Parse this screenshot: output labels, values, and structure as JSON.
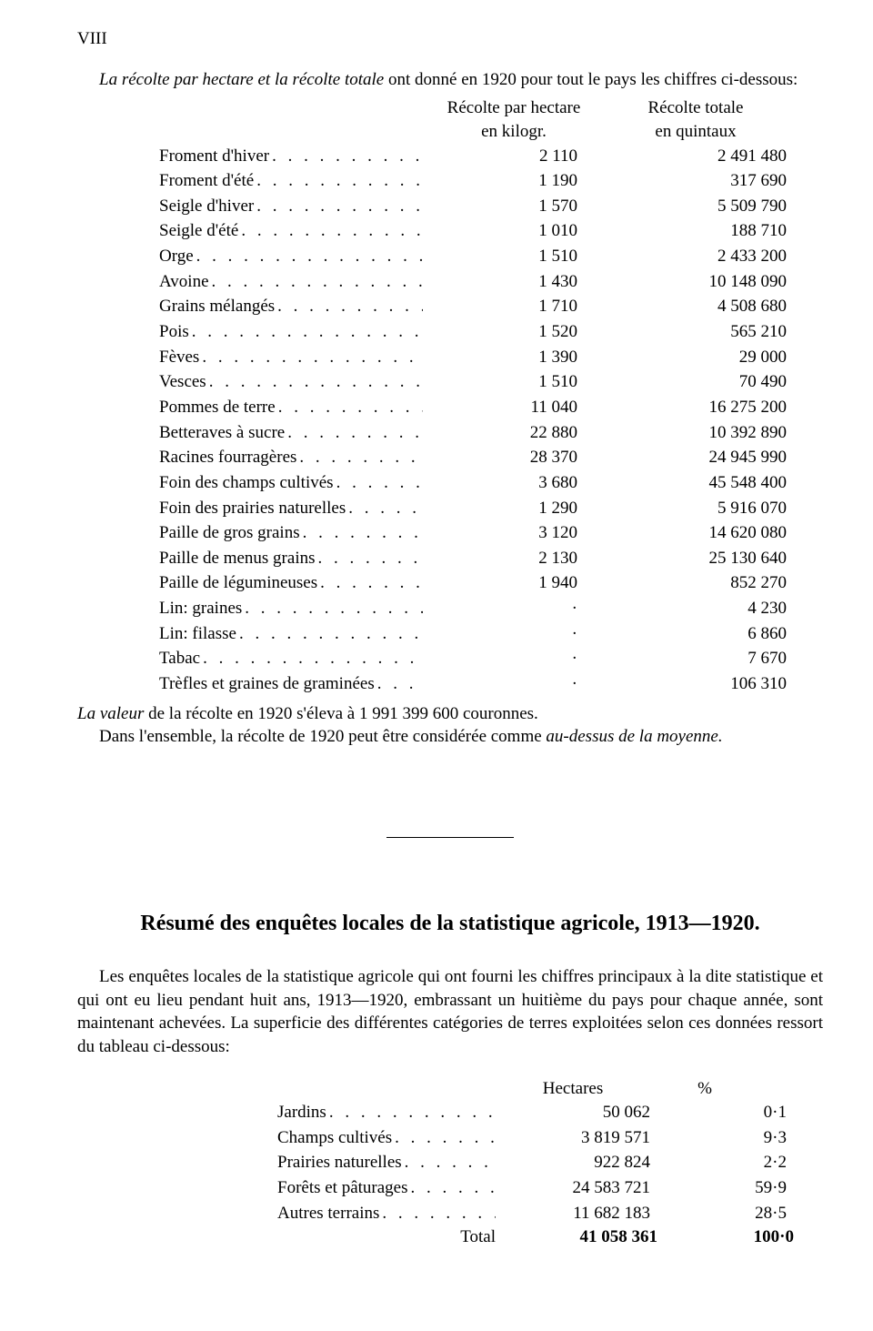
{
  "page_number": "VIII",
  "intro_sentence_prefix": "La récolte par hectare et la récolte totale",
  "intro_sentence_rest": " ont donné en 1920 pour tout le pays les chiffres ci-dessous:",
  "recolte_headers": {
    "col1_line1": "Récolte par hectare",
    "col1_line2": "en kilogr.",
    "col2_line1": "Récolte totale",
    "col2_line2": "en quintaux"
  },
  "recolte_rows": [
    {
      "label": "Froment d'hiver",
      "v1": "2 110",
      "v2": "2 491 480"
    },
    {
      "label": "Froment d'été",
      "v1": "1 190",
      "v2": "317 690"
    },
    {
      "label": "Seigle d'hiver",
      "v1": "1 570",
      "v2": "5 509 790"
    },
    {
      "label": "Seigle d'été",
      "v1": "1 010",
      "v2": "188 710"
    },
    {
      "label": "Orge",
      "v1": "1 510",
      "v2": "2 433 200"
    },
    {
      "label": "Avoine",
      "v1": "1 430",
      "v2": "10 148 090"
    },
    {
      "label": "Grains mélangés",
      "v1": "1 710",
      "v2": "4 508 680"
    },
    {
      "label": "Pois",
      "v1": "1 520",
      "v2": "565 210"
    },
    {
      "label": "Fèves",
      "v1": "1 390",
      "v2": "29 000"
    },
    {
      "label": "Vesces",
      "v1": "1 510",
      "v2": "70 490"
    },
    {
      "label": "Pommes de terre",
      "v1": "11 040",
      "v2": "16 275 200"
    },
    {
      "label": "Betteraves à sucre",
      "v1": "22 880",
      "v2": "10 392 890"
    },
    {
      "label": "Racines fourragères",
      "v1": "28 370",
      "v2": "24 945 990"
    },
    {
      "label": "Foin des champs cultivés",
      "v1": "3 680",
      "v2": "45 548 400"
    },
    {
      "label": "Foin des prairies naturelles",
      "v1": "1 290",
      "v2": "5 916 070"
    },
    {
      "label": "Paille de gros grains",
      "v1": "3 120",
      "v2": "14 620 080"
    },
    {
      "label": "Paille de menus grains",
      "v1": "2 130",
      "v2": "25 130 640"
    },
    {
      "label": "Paille de légumineuses",
      "v1": "1 940",
      "v2": "852 270"
    },
    {
      "label": "Lin: graines",
      "v1": "·",
      "v2": "4 230"
    },
    {
      "label": "Lin: filasse",
      "v1": "·",
      "v2": "6 860"
    },
    {
      "label": "Tabac",
      "v1": "·",
      "v2": "7 670"
    },
    {
      "label": "Trèfles et graines de graminées",
      "v1": "·",
      "v2": "106 310"
    }
  ],
  "valeur_line_prefix_italic": "La valeur",
  "valeur_line_rest": " de la récolte en 1920 s'éleva à 1 991 399 600 couronnes.",
  "valeur_line2_a": "Dans l'ensemble, la récolte de 1920 peut être considérée comme ",
  "valeur_line2_b_italic": "au-dessus de la moyenne.",
  "section_title": "Résumé des enquêtes locales de la statistique agricole, 1913—1920.",
  "section_para": "Les enquêtes locales de la statistique agricole qui ont fourni les chiffres principaux à la dite statistique et qui ont eu lieu pendant huit ans, 1913—1920, embrassant un huitième du pays pour chaque année, sont maintenant achevées. La superficie des différentes catégories de terres exploitées selon ces données ressort du tableau ci-dessous:",
  "land_headers": {
    "col1": "Hectares",
    "col2": "%"
  },
  "land_rows": [
    {
      "label": "Jardins",
      "v1": "50 062",
      "v2": "0·1"
    },
    {
      "label": "Champs cultivés",
      "v1": "3 819 571",
      "v2": "9·3"
    },
    {
      "label": "Prairies naturelles",
      "v1": "922 824",
      "v2": "2·2"
    },
    {
      "label": "Forêts et pâturages",
      "v1": "24 583 721",
      "v2": "59·9"
    },
    {
      "label": "Autres terrains",
      "v1": "11 682 183",
      "v2": "28·5"
    }
  ],
  "land_total": {
    "label": "Total",
    "v1": "41 058 361",
    "v2": "100·0"
  },
  "dot_fill": ". . . . . . . . . . . . . . . . . . . . . . . . . . . . . . . ."
}
